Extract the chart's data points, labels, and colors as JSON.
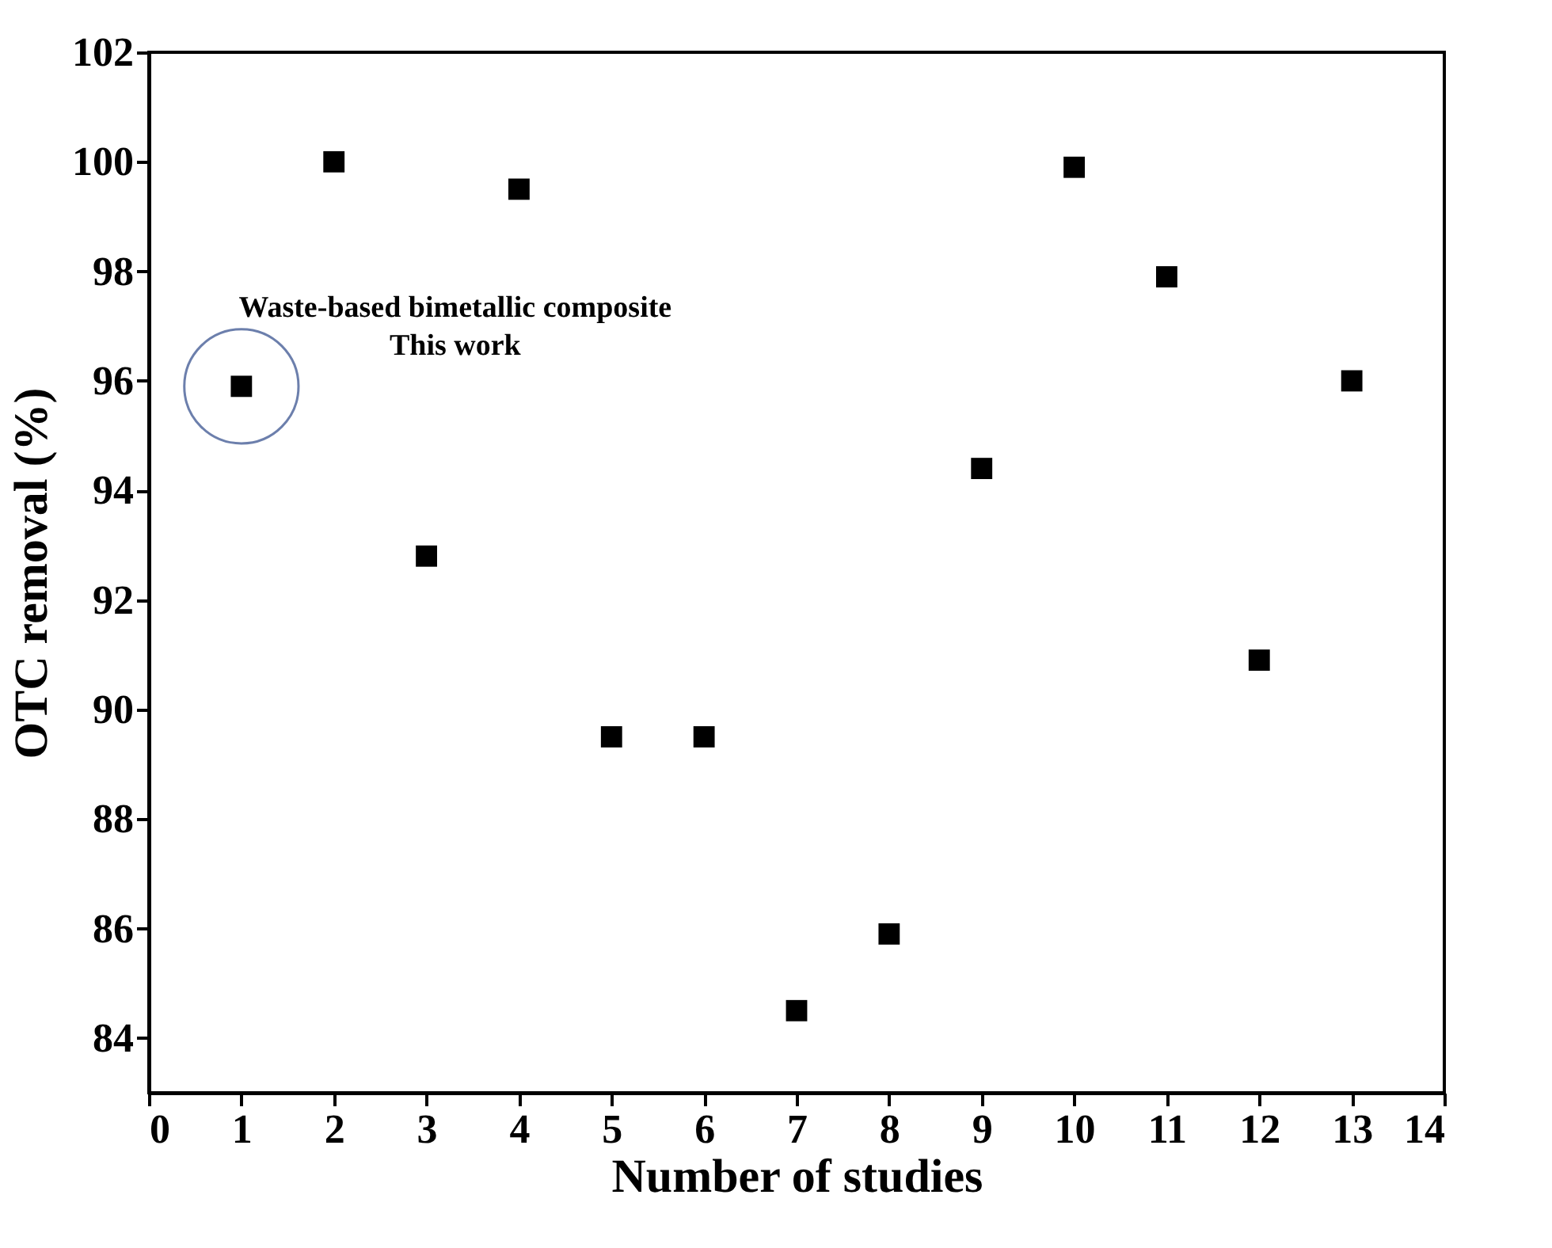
{
  "chart_data": {
    "type": "scatter",
    "xlabel": "Number of studies",
    "ylabel": "OTC removal (%)",
    "x": [
      1,
      2,
      3,
      4,
      5,
      6,
      7,
      8,
      9,
      10,
      11,
      12,
      13
    ],
    "series": [
      {
        "color": "#000000",
        "values": [
          95.9,
          100,
          92.8,
          99.5,
          89.5,
          89.5,
          84.5,
          85.9,
          94.4,
          99.9,
          97.9,
          90.9,
          96
        ]
      }
    ],
    "marker": "square",
    "grid": false,
    "xlim": [
      0,
      14
    ],
    "xticks": [
      0,
      1,
      2,
      3,
      4,
      5,
      6,
      7,
      8,
      9,
      10,
      11,
      12,
      13,
      14
    ],
    "ylim": [
      83,
      102
    ],
    "yticks": [
      84,
      86,
      88,
      90,
      92,
      94,
      96,
      98,
      100,
      102
    ],
    "annotations": [
      {
        "text": "Waste-based bimetallic composite\nThis work",
        "x": 1,
        "y": 95.9
      }
    ]
  }
}
